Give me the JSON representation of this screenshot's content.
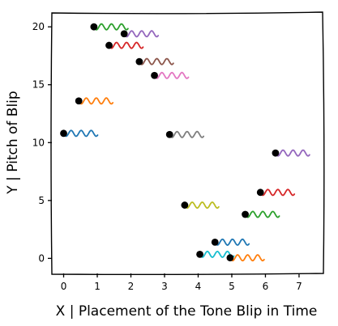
{
  "chart_data": {
    "type": "scatter",
    "title": "",
    "xlabel": "X | Placement of the Tone Blip in Time",
    "ylabel": "Y | Pitch of Blip",
    "xlim": [
      -0.35,
      7.7
    ],
    "ylim": [
      -1.3,
      21.2
    ],
    "x_ticks": [
      "0",
      "1",
      "2",
      "3",
      "4",
      "5",
      "6",
      "7"
    ],
    "y_ticks": [
      "0",
      "5",
      "10",
      "15",
      "20"
    ],
    "grid": false,
    "legend": "none",
    "points": [
      {
        "x": 0.0,
        "y": 10.8,
        "color": "#1f77b4"
      },
      {
        "x": 0.45,
        "y": 13.6,
        "color": "#ff7f0e"
      },
      {
        "x": 0.9,
        "y": 20.0,
        "color": "#2ca02c"
      },
      {
        "x": 1.35,
        "y": 18.4,
        "color": "#d62728"
      },
      {
        "x": 1.8,
        "y": 19.4,
        "color": "#9467bd"
      },
      {
        "x": 2.25,
        "y": 17.0,
        "color": "#8c564b"
      },
      {
        "x": 2.7,
        "y": 15.8,
        "color": "#e377c2"
      },
      {
        "x": 3.15,
        "y": 10.7,
        "color": "#7f7f7f"
      },
      {
        "x": 3.6,
        "y": 4.6,
        "color": "#bcbd22"
      },
      {
        "x": 4.05,
        "y": 0.35,
        "color": "#17becf"
      },
      {
        "x": 4.5,
        "y": 1.4,
        "color": "#1f77b4"
      },
      {
        "x": 4.95,
        "y": 0.05,
        "color": "#ff7f0e"
      },
      {
        "x": 5.4,
        "y": 3.8,
        "color": "#2ca02c"
      },
      {
        "x": 5.85,
        "y": 5.7,
        "color": "#d62728"
      },
      {
        "x": 6.3,
        "y": 9.1,
        "color": "#9467bd"
      }
    ],
    "colors": {
      "marker": "#000000",
      "axes": "#000000",
      "background": "#ffffff"
    }
  }
}
